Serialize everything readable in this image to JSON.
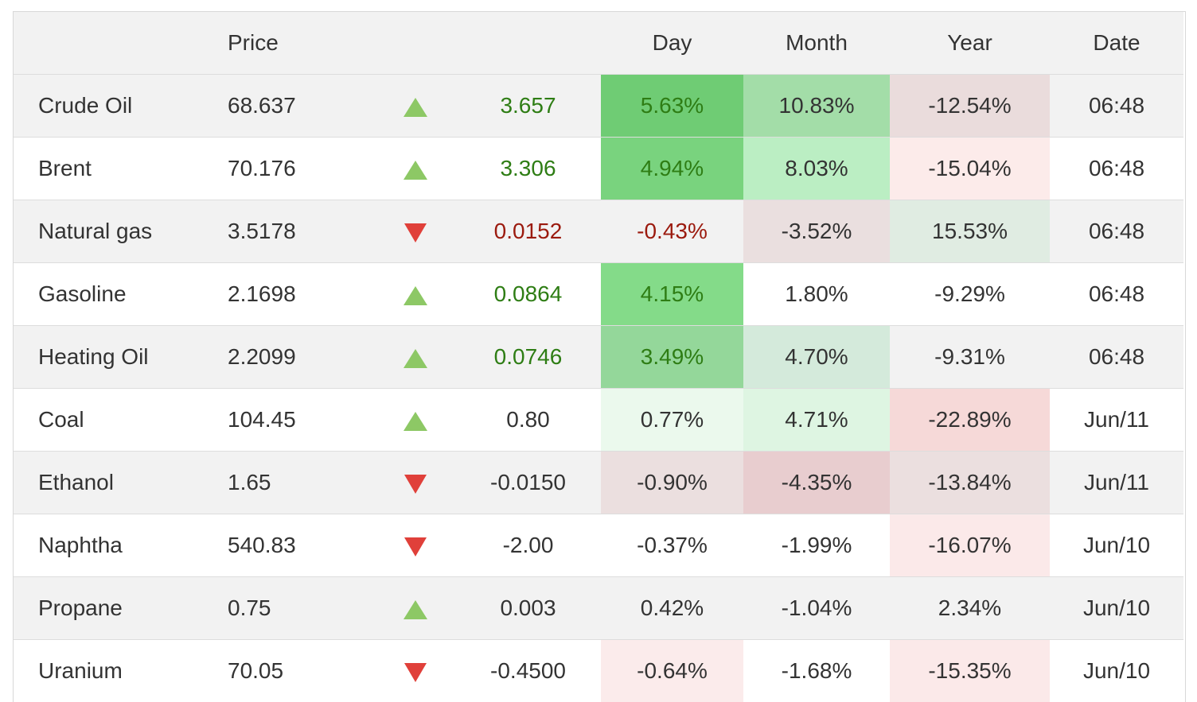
{
  "header": {
    "name": "",
    "price": "Price",
    "arrow": "",
    "change": "",
    "day": "Day",
    "month": "Month",
    "year": "Year",
    "date": "Date"
  },
  "colors": {
    "up_arrow": "#8dc865",
    "down_arrow": "#e0403a",
    "positive_text": "#2e7d14",
    "negative_text": "#9b1a0e"
  },
  "rows": [
    {
      "name": "Crude Oil",
      "price": "68.637",
      "direction": "up",
      "change": "3.657",
      "change_style": "pos",
      "day": "5.63%",
      "day_bg": "#6fcc74",
      "day_style": "pos",
      "month": "10.83%",
      "month_bg": "#a3dda8",
      "year": "-12.54%",
      "year_bg": "#eadcdc",
      "date": "06:48"
    },
    {
      "name": "Brent",
      "price": "70.176",
      "direction": "up",
      "change": "3.306",
      "change_style": "pos",
      "day": "4.94%",
      "day_bg": "#79d37e",
      "day_style": "pos",
      "month": "8.03%",
      "month_bg": "#bbeec3",
      "year": "-15.04%",
      "year_bg": "#fcebea",
      "date": "06:48"
    },
    {
      "name": "Natural gas",
      "price": "3.5178",
      "direction": "down",
      "change": "0.0152",
      "change_style": "neg",
      "day": "-0.43%",
      "day_bg": "",
      "day_style": "neg",
      "month": "-3.52%",
      "month_bg": "#eadfdf",
      "year": "15.53%",
      "year_bg": "#e0ece2",
      "date": "06:48"
    },
    {
      "name": "Gasoline",
      "price": "2.1698",
      "direction": "up",
      "change": "0.0864",
      "change_style": "pos",
      "day": "4.15%",
      "day_bg": "#84db89",
      "day_style": "pos",
      "month": "1.80%",
      "month_bg": "",
      "year": "-9.29%",
      "year_bg": "",
      "date": "06:48"
    },
    {
      "name": "Heating Oil",
      "price": "2.2099",
      "direction": "up",
      "change": "0.0746",
      "change_style": "pos",
      "day": "3.49%",
      "day_bg": "#94d79a",
      "day_style": "pos",
      "month": "4.70%",
      "month_bg": "#d4eadb",
      "year": "-9.31%",
      "year_bg": "",
      "date": "06:48"
    },
    {
      "name": "Coal",
      "price": "104.45",
      "direction": "up",
      "change": "0.80",
      "change_style": "",
      "day": "0.77%",
      "day_bg": "#ebf9ed",
      "day_style": "",
      "month": "4.71%",
      "month_bg": "#def5e2",
      "year": "-22.89%",
      "year_bg": "#f6d9d8",
      "date": "Jun/11"
    },
    {
      "name": "Ethanol",
      "price": "1.65",
      "direction": "down",
      "change": "-0.0150",
      "change_style": "",
      "day": "-0.90%",
      "day_bg": "#ebdfdf",
      "day_style": "",
      "month": "-4.35%",
      "month_bg": "#e8cdcf",
      "year": "-13.84%",
      "year_bg": "#ebdfdf",
      "date": "Jun/11"
    },
    {
      "name": "Naphtha",
      "price": "540.83",
      "direction": "down",
      "change": "-2.00",
      "change_style": "",
      "day": "-0.37%",
      "day_bg": "",
      "day_style": "",
      "month": "-1.99%",
      "month_bg": "",
      "year": "-16.07%",
      "year_bg": "#fbe9e9",
      "date": "Jun/10"
    },
    {
      "name": "Propane",
      "price": "0.75",
      "direction": "up",
      "change": "0.003",
      "change_style": "",
      "day": "0.42%",
      "day_bg": "",
      "day_style": "",
      "month": "-1.04%",
      "month_bg": "",
      "year": "2.34%",
      "year_bg": "",
      "date": "Jun/10"
    },
    {
      "name": "Uranium",
      "price": "70.05",
      "direction": "down",
      "change": "-0.4500",
      "change_style": "",
      "day": "-0.64%",
      "day_bg": "#fbebeb",
      "day_style": "",
      "month": "-1.68%",
      "month_bg": "",
      "year": "-15.35%",
      "year_bg": "#fbe9e9",
      "date": "Jun/10"
    }
  ]
}
